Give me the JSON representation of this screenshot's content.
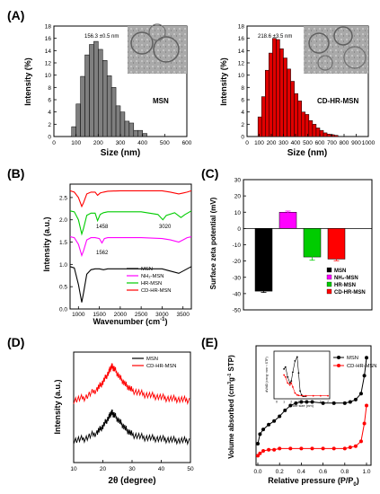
{
  "panels": {
    "A": {
      "letter": "(A)"
    },
    "B": {
      "letter": "(B)"
    },
    "C": {
      "letter": "(C)"
    },
    "D": {
      "letter": "(D)"
    },
    "E": {
      "letter": "(E)"
    }
  },
  "colors": {
    "axis": "#000000",
    "gray_bar": "#7f7f7f",
    "red_bar": "#e00000",
    "msn": "#000000",
    "nh2": "#ff00ff",
    "hr": "#00cc00",
    "cd": "#ff0000",
    "inset_bg": "#b9b9b9"
  },
  "icons": {
    "tem_left": "tem-micrograph-icon",
    "tem_right": "tem-micrograph-icon"
  },
  "chart_data": [
    {
      "panel": "A-left",
      "type": "bar",
      "xlabel": "Size (nm)",
      "ylabel": "Intensity (%)",
      "xlim": [
        0,
        600
      ],
      "ylim": [
        0,
        18
      ],
      "xticks": [
        "0",
        "100",
        "200",
        "300",
        "400",
        "500",
        "600"
      ],
      "yticks": [
        "0",
        "2",
        "4",
        "6",
        "8",
        "10",
        "12",
        "14",
        "16",
        "18"
      ],
      "annotation": "156.3 ±0.5 nm",
      "label": "MSN",
      "bin_width": 20,
      "x": [
        90,
        110,
        130,
        150,
        170,
        190,
        210,
        230,
        250,
        270,
        290,
        310,
        330,
        350,
        370,
        390,
        410
      ],
      "values": [
        1.6,
        5.3,
        9.8,
        13.3,
        15.0,
        15.5,
        14.2,
        12.4,
        9.9,
        8.0,
        5.0,
        4.0,
        2.5,
        2.2,
        1.0,
        1.0,
        0.5
      ]
    },
    {
      "panel": "A-right",
      "type": "bar",
      "xlabel": "Size (nm)",
      "ylabel": "Intensity (%)",
      "xlim": [
        0,
        1000
      ],
      "ylim": [
        0,
        18
      ],
      "xticks": [
        "0",
        "100",
        "200",
        "300",
        "400",
        "500",
        "600",
        "700",
        "800",
        "900",
        "1000"
      ],
      "yticks": [
        "0",
        "2",
        "4",
        "6",
        "8",
        "10",
        "12",
        "14",
        "16",
        "18"
      ],
      "annotation": "218.6 ±3.5 nm",
      "label": "CD-HR-MSN",
      "bin_width": 30,
      "x": [
        105,
        135,
        165,
        195,
        225,
        255,
        285,
        315,
        345,
        375,
        405,
        435,
        465,
        495,
        525,
        555,
        585,
        615,
        645,
        675,
        705,
        735
      ],
      "values": [
        3.2,
        6.5,
        10.8,
        13.6,
        16.0,
        15.8,
        14.3,
        12.8,
        11.0,
        9.0,
        7.0,
        5.8,
        4.0,
        3.6,
        2.6,
        2.0,
        1.4,
        1.0,
        0.6,
        0.4,
        0.3,
        0.2
      ]
    },
    {
      "panel": "B",
      "type": "line",
      "xlabel": "Wavenumber (cm",
      "xlabel_sup": "-1",
      "xlabel_end": ")",
      "ylabel": "Intensity (a.u.)",
      "xlim": [
        800,
        3700
      ],
      "ylim": [
        0,
        2.8
      ],
      "xticks": [
        "1000",
        "1500",
        "2000",
        "2500",
        "3000",
        "3500"
      ],
      "yticks": [
        "0.0",
        "0.5",
        "1.0",
        "1.5",
        "2.0",
        "2.5"
      ],
      "annotations": [
        "1458",
        "3020",
        "1562"
      ],
      "series": [
        {
          "name": "MSN",
          "x": [
            800,
            900,
            1000,
            1080,
            1120,
            1200,
            1300,
            1400,
            1500,
            1600,
            1700,
            2000,
            2500,
            3000,
            3200,
            3400,
            3500,
            3600,
            3700
          ],
          "values": [
            0.95,
            0.92,
            0.55,
            0.15,
            0.35,
            0.78,
            0.88,
            0.9,
            0.9,
            0.88,
            0.9,
            0.9,
            0.9,
            0.9,
            0.85,
            0.8,
            0.85,
            0.9,
            0.95
          ]
        },
        {
          "name": "NH₂-MSN",
          "x": [
            800,
            900,
            1000,
            1080,
            1120,
            1200,
            1300,
            1400,
            1500,
            1562,
            1620,
            1700,
            2000,
            2500,
            3000,
            3200,
            3400,
            3500,
            3600,
            3700
          ],
          "values": [
            1.62,
            1.6,
            1.45,
            1.2,
            1.3,
            1.55,
            1.6,
            1.6,
            1.58,
            1.48,
            1.58,
            1.6,
            1.6,
            1.6,
            1.58,
            1.55,
            1.5,
            1.55,
            1.6,
            1.62
          ]
        },
        {
          "name": "HR-MSN",
          "x": [
            800,
            900,
            1000,
            1080,
            1120,
            1200,
            1300,
            1400,
            1458,
            1520,
            1600,
            1700,
            2000,
            2500,
            2900,
            3020,
            3100,
            3300,
            3450,
            3550,
            3700
          ],
          "values": [
            2.2,
            2.18,
            2.0,
            1.68,
            1.8,
            2.1,
            2.15,
            2.15,
            1.98,
            2.12,
            2.16,
            2.18,
            2.18,
            2.18,
            2.12,
            2.0,
            2.1,
            2.16,
            2.05,
            2.12,
            2.2
          ]
        },
        {
          "name": "CD-HR-MSN",
          "x": [
            800,
            900,
            1000,
            1080,
            1120,
            1200,
            1300,
            1400,
            1458,
            1520,
            1600,
            1700,
            2000,
            2500,
            3000,
            3200,
            3400,
            3500,
            3600,
            3700
          ],
          "values": [
            2.65,
            2.62,
            2.5,
            2.3,
            2.38,
            2.58,
            2.62,
            2.62,
            2.55,
            2.6,
            2.62,
            2.64,
            2.65,
            2.65,
            2.65,
            2.62,
            2.58,
            2.6,
            2.62,
            2.65
          ]
        }
      ],
      "legend_position": "bottom-right"
    },
    {
      "panel": "C",
      "type": "bar",
      "ylabel": "Surface zeta potential (mV)",
      "ylim": [
        -50,
        30
      ],
      "yticks": [
        "-50",
        "-40",
        "-30",
        "-20",
        "-10",
        "0",
        "10",
        "20",
        "30"
      ],
      "categories": [
        "MSN",
        "NH₂-MSN",
        "HR-MSN",
        "CD-HR-MSN"
      ],
      "values": [
        -38.5,
        10.0,
        -17.5,
        -18.8
      ],
      "errors": [
        0.8,
        0.7,
        2.0,
        1.0
      ],
      "legend_position": "bottom-right"
    },
    {
      "panel": "D",
      "type": "line",
      "xlabel": "2θ (degree)",
      "ylabel": "Intensity (a.u.)",
      "xlim": [
        10,
        50
      ],
      "xticks": [
        "10",
        "20",
        "30",
        "40",
        "50"
      ],
      "series": [
        {
          "name": "MSN",
          "x": [
            10,
            14,
            18,
            20,
            22,
            23,
            24,
            26,
            28,
            30,
            34,
            38,
            42,
            46,
            50
          ],
          "values": [
            0.22,
            0.24,
            0.3,
            0.36,
            0.45,
            0.5,
            0.47,
            0.4,
            0.33,
            0.28,
            0.25,
            0.24,
            0.23,
            0.22,
            0.22
          ]
        },
        {
          "name": "CD-HR-MSN",
          "x": [
            10,
            14,
            18,
            20,
            22,
            23,
            24,
            26,
            28,
            30,
            34,
            38,
            42,
            46,
            50
          ],
          "values": [
            0.62,
            0.65,
            0.73,
            0.8,
            0.9,
            0.96,
            0.93,
            0.84,
            0.77,
            0.72,
            0.68,
            0.66,
            0.64,
            0.63,
            0.62
          ]
        }
      ],
      "legend_position": "top-right"
    },
    {
      "panel": "E",
      "type": "line",
      "xlabel": "Relative pressure (P/P",
      "xlabel_sub": "0",
      "xlabel_end": ")",
      "ylabel": "Volume absorbed (cm",
      "ylabel_sup": "3",
      "ylabel_mid": "g",
      "ylabel_sup2": "-1",
      "ylabel_end": " STP)",
      "xlim": [
        0,
        1.0
      ],
      "xticks": [
        "0.0",
        "0.2",
        "0.4",
        "0.6",
        "0.8",
        "1.0"
      ],
      "series": [
        {
          "name": "MSN",
          "x": [
            0.0,
            0.02,
            0.05,
            0.1,
            0.15,
            0.2,
            0.25,
            0.3,
            0.35,
            0.4,
            0.45,
            0.5,
            0.6,
            0.7,
            0.8,
            0.85,
            0.9,
            0.95,
            0.98,
            1.0
          ],
          "values": [
            0.18,
            0.26,
            0.3,
            0.34,
            0.37,
            0.41,
            0.46,
            0.5,
            0.52,
            0.53,
            0.53,
            0.53,
            0.52,
            0.52,
            0.52,
            0.53,
            0.55,
            0.6,
            0.75,
            0.9
          ]
        },
        {
          "name": "CD-HR-MSN",
          "x": [
            0.0,
            0.02,
            0.05,
            0.1,
            0.15,
            0.2,
            0.3,
            0.4,
            0.5,
            0.6,
            0.7,
            0.8,
            0.85,
            0.9,
            0.95,
            0.98,
            1.0
          ],
          "values": [
            0.08,
            0.1,
            0.12,
            0.13,
            0.13,
            0.14,
            0.14,
            0.14,
            0.14,
            0.14,
            0.14,
            0.14,
            0.15,
            0.16,
            0.2,
            0.35,
            0.5
          ]
        }
      ],
      "legend_position": "top-right",
      "inset": {
        "xlabel": "Pore size (nm)",
        "ylabel": "dV/dD (cm³g⁻¹nm⁻¹ STP)",
        "xticks": [
          "0",
          "1",
          "2",
          "3",
          "4",
          "5",
          "6",
          "7"
        ],
        "series": [
          {
            "name": "MSN",
            "x": [
              1.0,
              1.2,
              1.5,
              1.8,
              2.0,
              2.2,
              2.5,
              2.8,
              3.0,
              3.2,
              3.4,
              3.6,
              3.8,
              4.0
            ],
            "values": [
              0.7,
              0.75,
              0.5,
              0.35,
              0.4,
              0.62,
              0.9,
              1.0,
              0.6,
              0.15,
              0.05,
              0.02,
              0.02,
              0.02
            ]
          },
          {
            "name": "CD-HR-MSN",
            "x": [
              1.0,
              1.2,
              1.5,
              1.8,
              2.0,
              2.2,
              2.5,
              2.8,
              3.0,
              3.5,
              4.0,
              5.0,
              6.0,
              7.0
            ],
            "values": [
              0.55,
              0.5,
              0.35,
              0.3,
              0.35,
              0.25,
              0.1,
              0.05,
              0.04,
              0.03,
              0.03,
              0.03,
              0.03,
              0.03
            ]
          }
        ]
      }
    }
  ]
}
